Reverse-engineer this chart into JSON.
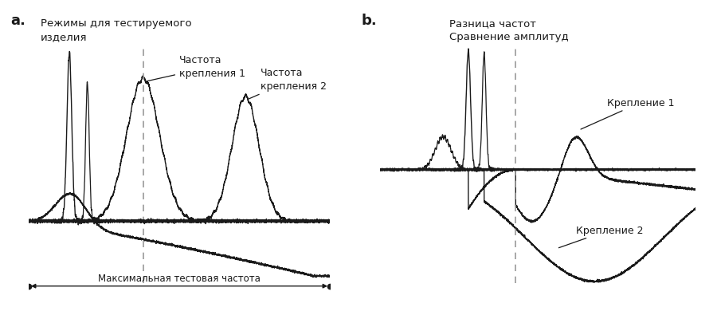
{
  "fig_width": 9.0,
  "fig_height": 4.06,
  "dpi": 100,
  "bg_color": "#ffffff",
  "label_a": "a.",
  "label_b": "b.",
  "title_a": "Режимы для тестируемого\nизделия",
  "title_b": "Разница частот\nСравнение амплитуд",
  "annotation_fix1": "Частота\nкрепления 1",
  "annotation_fix2": "Частота\nкрепления 2",
  "annotation_fix1b": "Крепление 1",
  "annotation_fix2b": "Крепление 2",
  "bottom_label": "Максимальная тестовая частота",
  "text_color": "#1a1a1a",
  "line_color": "#1a1a1a",
  "dashed_color": "#999999"
}
